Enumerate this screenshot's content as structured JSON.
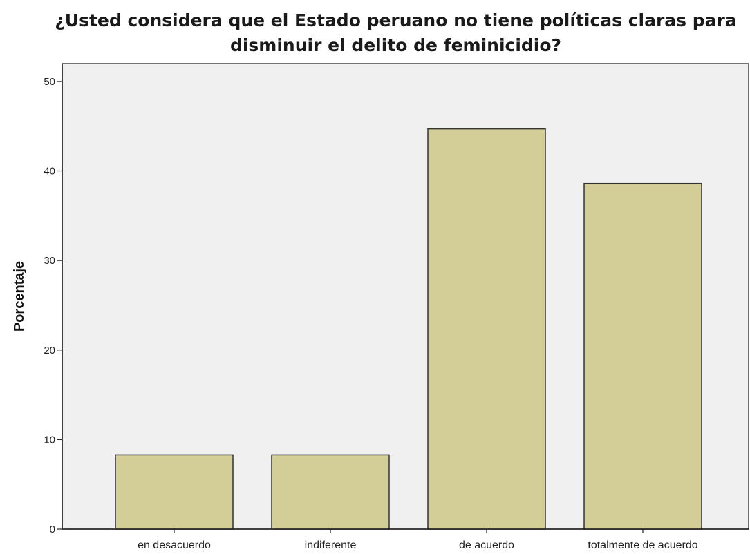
{
  "chart_data": {
    "type": "bar",
    "title": "¿Usted considera que el Estado peruano no tiene políticas claras para disminuir el delito de feminicidio?",
    "xlabel": "",
    "ylabel": "Porcentaje",
    "categories": [
      "en desacuerdo",
      "indiferente",
      "de acuerdo",
      "totalmente de acuerdo"
    ],
    "values": [
      8.3,
      8.3,
      44.7,
      38.6
    ],
    "ylim": [
      0,
      52
    ],
    "yticks": [
      0,
      10,
      20,
      30,
      40,
      50
    ],
    "grid": false,
    "bar_color": "#d3cd98",
    "plot_background": "#f0f0f0"
  }
}
